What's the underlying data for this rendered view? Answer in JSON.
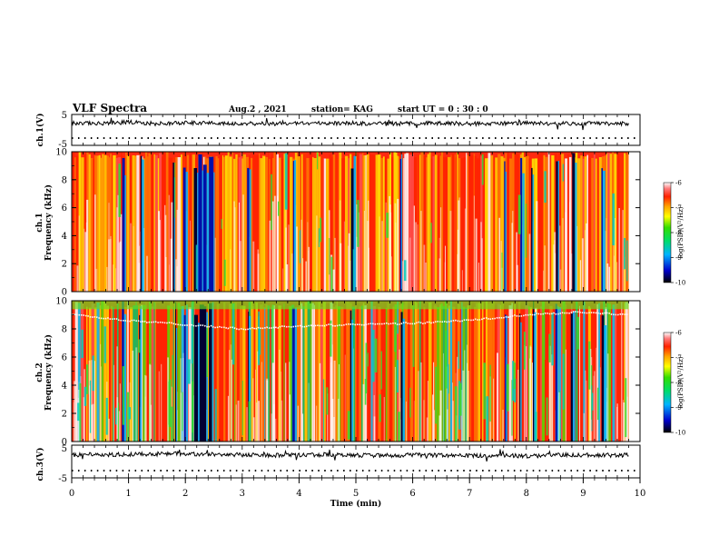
{
  "header": {
    "title": "VLF Spectra",
    "date": "Aug.2 , 2021",
    "station": "station= KAG",
    "start": "start UT = 0 : 30 : 0"
  },
  "chart_data": [
    {
      "type": "line",
      "name": "ch1-waveform",
      "ylabel": "ch.1(V)",
      "ylim": [
        -5,
        5
      ],
      "yticks": [
        "5",
        "-5"
      ],
      "xlim": [
        0,
        10
      ],
      "baseline_v": 2.2,
      "x": [
        0,
        0.5,
        1,
        1.5,
        2,
        2.5,
        3,
        3.5,
        4,
        4.5,
        5,
        5.5,
        6,
        6.5,
        7,
        7.5,
        8,
        8.5,
        9,
        9.5,
        9.8
      ],
      "y": [
        2.2,
        2.1,
        2.5,
        2.0,
        2.4,
        2.2,
        2.1,
        2.0,
        2.3,
        2.1,
        2.2,
        2.0,
        2.1,
        2.2,
        2.0,
        2.1,
        2.2,
        2.0,
        2.1,
        2.0,
        2.1
      ]
    },
    {
      "type": "heatmap",
      "name": "ch1-spectrogram",
      "ylabel_line1": "ch.1",
      "ylabel_line2": "Frequency (kHz)",
      "ylim": [
        0,
        10
      ],
      "yticks": [
        "0",
        "2",
        "4",
        "6",
        "8",
        "10"
      ],
      "xlim": [
        0,
        9.8
      ],
      "colorbar_label": "log(PSD)(V²/Hz)",
      "colorbar_ticks": [
        "-6",
        "-7",
        "-8",
        "-9",
        "-10"
      ],
      "clim": [
        -10,
        -6
      ]
    },
    {
      "type": "heatmap",
      "name": "ch2-spectrogram",
      "ylabel_line1": "ch.2",
      "ylabel_line2": "Frequency (kHz)",
      "ylim": [
        0,
        10
      ],
      "yticks": [
        "0",
        "2",
        "4",
        "6",
        "8",
        "10"
      ],
      "xlim": [
        0,
        9.8
      ],
      "colorbar_label": "log(PSD)(V²/Hz)",
      "colorbar_ticks": [
        "-6",
        "-7",
        "-8",
        "-9",
        "-10"
      ],
      "clim": [
        -10,
        -6
      ],
      "band_x": [
        0,
        1,
        2,
        3,
        4,
        5,
        6,
        7,
        8,
        9,
        9.8
      ],
      "band_khz": [
        9.0,
        8.6,
        8.3,
        8.0,
        8.2,
        8.3,
        8.4,
        8.6,
        9.0,
        9.2,
        9.0
      ]
    },
    {
      "type": "line",
      "name": "ch3-waveform",
      "ylabel": "ch.3(V)",
      "ylim": [
        -5,
        5
      ],
      "yticks": [
        "5",
        "-5"
      ],
      "xlim": [
        0,
        10
      ],
      "x": [
        0,
        0.5,
        1,
        1.5,
        2,
        2.5,
        3,
        3.5,
        4,
        4.5,
        5,
        5.5,
        6,
        6.5,
        7,
        7.5,
        8,
        8.5,
        9,
        9.5,
        9.8
      ],
      "y": [
        2.0,
        2.2,
        2.1,
        2.3,
        2.4,
        2.2,
        2.0,
        1.9,
        2.0,
        2.1,
        1.9,
        1.8,
        2.0,
        1.9,
        1.8,
        1.9,
        1.7,
        1.9,
        2.0,
        1.9,
        2.0
      ]
    }
  ],
  "x_axis": {
    "label": "Time (min)",
    "ticks": [
      "0",
      "1",
      "2",
      "3",
      "4",
      "5",
      "6",
      "7",
      "8",
      "9",
      "10"
    ],
    "xlim": [
      0,
      10
    ]
  }
}
